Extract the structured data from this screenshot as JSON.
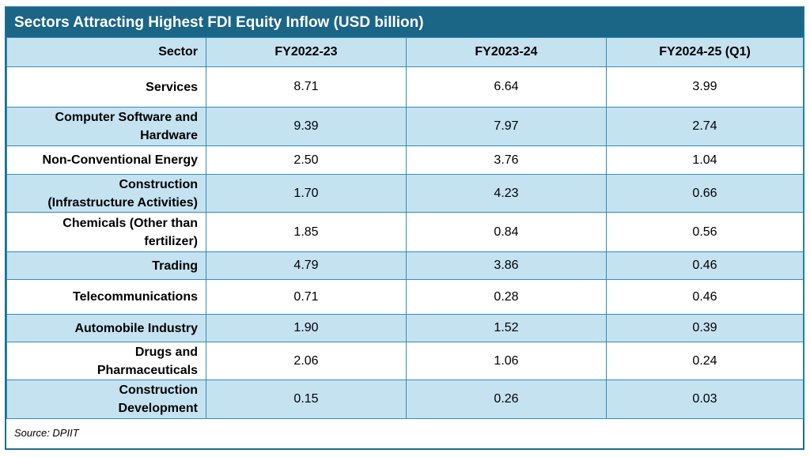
{
  "title": "Sectors Attracting Highest FDI Equity Inflow (USD billion)",
  "table": {
    "headers": [
      "Sector",
      "FY2022-23",
      "FY2023-24",
      "FY2024-25 (Q1)"
    ],
    "rows": [
      {
        "sector_lines": [
          "Services",
          ""
        ],
        "fy2022_23": "8.71",
        "fy2023_24": "6.64",
        "fy2024_25_q1": "3.99"
      },
      {
        "sector_lines": [
          "Computer Software and",
          "Hardware"
        ],
        "fy2022_23": "9.39",
        "fy2023_24": "7.97",
        "fy2024_25_q1": "2.74"
      },
      {
        "sector_lines": [
          "Non-Conventional Energy",
          ""
        ],
        "fy2022_23": "2.50",
        "fy2023_24": "3.76",
        "fy2024_25_q1": "1.04"
      },
      {
        "sector_lines": [
          "Construction",
          "(Infrastructure Activities)"
        ],
        "fy2022_23": "1.70",
        "fy2023_24": "4.23",
        "fy2024_25_q1": "0.66"
      },
      {
        "sector_lines": [
          "Chemicals (Other than",
          "fertilizer)"
        ],
        "fy2022_23": "1.85",
        "fy2023_24": "0.84",
        "fy2024_25_q1": "0.56"
      },
      {
        "sector_lines": [
          "Trading",
          ""
        ],
        "fy2022_23": "4.79",
        "fy2023_24": "3.86",
        "fy2024_25_q1": "0.46"
      },
      {
        "sector_lines": [
          "Telecommunications",
          ""
        ],
        "fy2022_23": "0.71",
        "fy2023_24": "0.28",
        "fy2024_25_q1": "0.46"
      },
      {
        "sector_lines": [
          "Automobile Industry",
          ""
        ],
        "fy2022_23": "1.90",
        "fy2023_24": "1.52",
        "fy2024_25_q1": "0.39"
      },
      {
        "sector_lines": [
          "Drugs and",
          "Pharmaceuticals"
        ],
        "fy2022_23": "2.06",
        "fy2023_24": "1.06",
        "fy2024_25_q1": "0.24"
      },
      {
        "sector_lines": [
          "Construction",
          "Development"
        ],
        "fy2022_23": "0.15",
        "fy2023_24": "0.26",
        "fy2024_25_q1": "0.03"
      }
    ]
  },
  "source": "Source: DPIIT",
  "colors": {
    "title_bar": "#1b6587",
    "header_and_even_rows": "#c5e2f1",
    "border": "#2e8fb8"
  }
}
